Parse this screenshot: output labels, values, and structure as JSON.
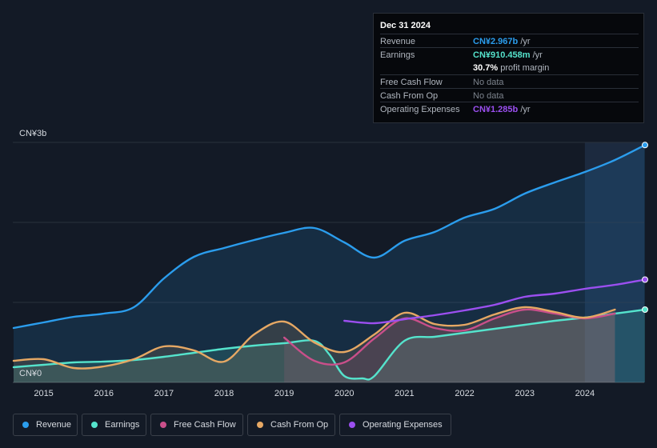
{
  "tooltip": {
    "date": "Dec 31 2024",
    "rows": [
      {
        "label": "Revenue",
        "value": "CN¥2.967b",
        "unit": "/yr",
        "color": "#2b9ded"
      },
      {
        "label": "Earnings",
        "value": "CN¥910.458m",
        "unit": "/yr",
        "color": "#55e3cc"
      },
      {
        "label": "",
        "value": "30.7%",
        "unit": "profit margin",
        "color": "#ffffff"
      },
      {
        "label": "Free Cash Flow",
        "value": "No data",
        "unit": "",
        "color": "#7c838d"
      },
      {
        "label": "Cash From Op",
        "value": "No data",
        "unit": "",
        "color": "#7c838d"
      },
      {
        "label": "Operating Expenses",
        "value": "CN¥1.285b",
        "unit": "/yr",
        "color": "#9b4ff0"
      }
    ]
  },
  "legend": [
    {
      "label": "Revenue",
      "color": "#2b9ded"
    },
    {
      "label": "Earnings",
      "color": "#55e3cc"
    },
    {
      "label": "Free Cash Flow",
      "color": "#c94f8a"
    },
    {
      "label": "Cash From Op",
      "color": "#e6a864"
    },
    {
      "label": "Operating Expenses",
      "color": "#9b4ff0"
    }
  ],
  "chart_data": {
    "type": "area",
    "title": "",
    "ylabel": "",
    "xlabel": "",
    "y_top_label": "CN¥3b",
    "y_bottom_label": "CN¥0",
    "ylim": [
      0,
      3.0
    ],
    "xlim": [
      2014.5,
      2025.0
    ],
    "x_ticks": [
      "2015",
      "2016",
      "2017",
      "2018",
      "2019",
      "2020",
      "2021",
      "2022",
      "2023",
      "2024"
    ],
    "highlight_start": 2024.0,
    "series": [
      {
        "name": "Revenue",
        "color": "#2b9ded",
        "fill": true,
        "x": [
          2014.5,
          2015.0,
          2015.5,
          2016.0,
          2016.5,
          2017.0,
          2017.5,
          2018.0,
          2018.5,
          2019.0,
          2019.5,
          2020.0,
          2020.5,
          2021.0,
          2021.5,
          2022.0,
          2022.5,
          2023.0,
          2023.5,
          2024.0,
          2024.5,
          2025.0
        ],
        "values": [
          0.68,
          0.75,
          0.82,
          0.86,
          0.94,
          1.3,
          1.57,
          1.68,
          1.78,
          1.87,
          1.93,
          1.75,
          1.56,
          1.77,
          1.88,
          2.06,
          2.17,
          2.36,
          2.5,
          2.63,
          2.78,
          2.967
        ]
      },
      {
        "name": "Earnings",
        "color": "#55e3cc",
        "fill": true,
        "x": [
          2014.5,
          2015.0,
          2015.5,
          2016.0,
          2016.5,
          2017.0,
          2017.5,
          2018.0,
          2018.5,
          2019.0,
          2019.5,
          2019.75,
          2020.0,
          2020.3,
          2020.5,
          2021.0,
          2021.5,
          2022.0,
          2022.5,
          2023.0,
          2023.5,
          2024.0,
          2024.5,
          2025.0
        ],
        "values": [
          0.19,
          0.22,
          0.25,
          0.26,
          0.28,
          0.32,
          0.37,
          0.42,
          0.46,
          0.49,
          0.52,
          0.35,
          0.08,
          0.05,
          0.08,
          0.52,
          0.57,
          0.62,
          0.67,
          0.72,
          0.77,
          0.81,
          0.86,
          0.91
        ]
      },
      {
        "name": "Free Cash Flow",
        "color": "#c94f8a",
        "fill": true,
        "x": [
          2019.0,
          2019.5,
          2020.0,
          2020.5,
          2021.0,
          2021.5,
          2022.0,
          2022.5,
          2023.0,
          2023.5,
          2024.0,
          2024.5
        ],
        "values": [
          0.56,
          0.27,
          0.25,
          0.55,
          0.8,
          0.68,
          0.65,
          0.8,
          0.91,
          0.86,
          0.8,
          0.86
        ]
      },
      {
        "name": "Cash From Op",
        "color": "#e6a864",
        "fill": true,
        "x": [
          2014.5,
          2015.0,
          2015.5,
          2016.0,
          2016.5,
          2017.0,
          2017.5,
          2018.0,
          2018.5,
          2019.0,
          2019.5,
          2020.0,
          2020.5,
          2021.0,
          2021.5,
          2022.0,
          2022.5,
          2023.0,
          2023.5,
          2024.0,
          2024.5
        ],
        "values": [
          0.27,
          0.29,
          0.18,
          0.2,
          0.29,
          0.45,
          0.4,
          0.26,
          0.6,
          0.76,
          0.5,
          0.38,
          0.6,
          0.87,
          0.73,
          0.72,
          0.85,
          0.94,
          0.88,
          0.81,
          0.91
        ]
      },
      {
        "name": "Operating Expenses",
        "color": "#9b4ff0",
        "fill": false,
        "x": [
          2020.0,
          2020.5,
          2021.0,
          2021.5,
          2022.0,
          2022.5,
          2023.0,
          2023.5,
          2024.0,
          2024.5,
          2025.0
        ],
        "values": [
          0.77,
          0.74,
          0.79,
          0.84,
          0.9,
          0.97,
          1.07,
          1.11,
          1.17,
          1.22,
          1.285
        ]
      }
    ]
  }
}
